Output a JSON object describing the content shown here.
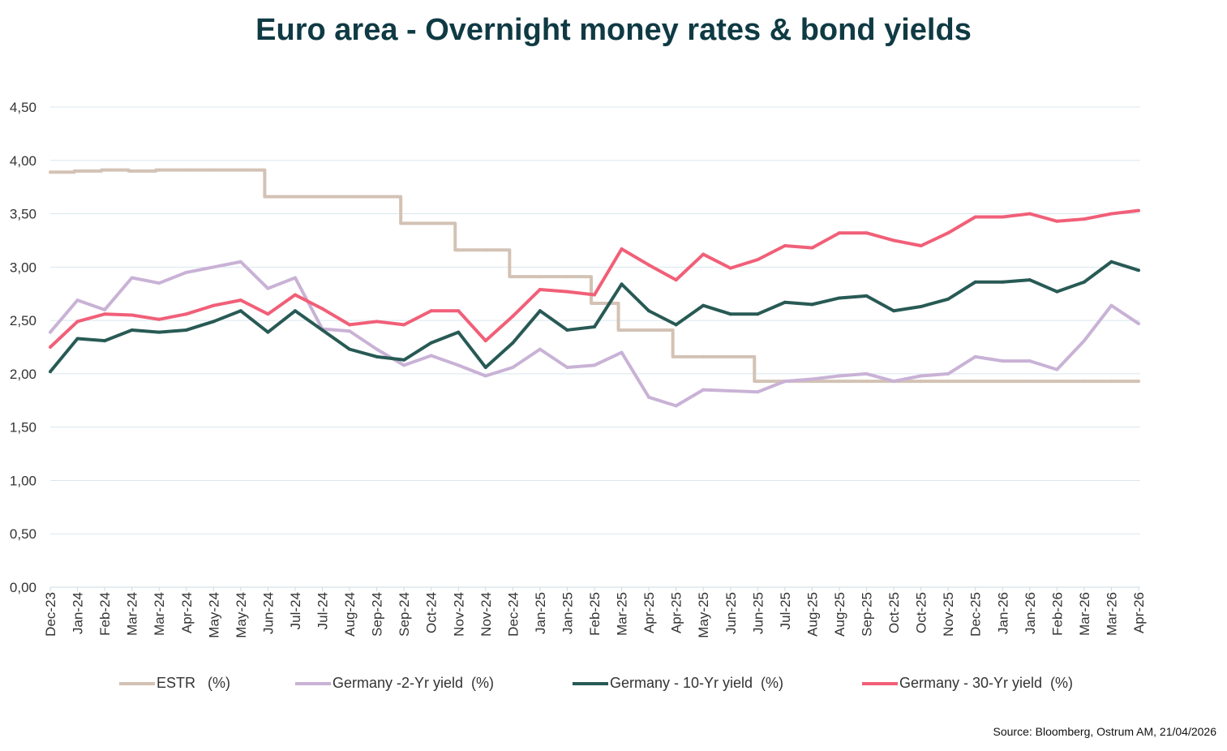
{
  "chart_data": {
    "type": "line",
    "title": "Euro area - Overnight money rates & bond yields",
    "xlabel": "",
    "ylabel": "",
    "ylim": [
      0,
      4.5
    ],
    "yticks": [
      "0,00",
      "0,50",
      "1,00",
      "1,50",
      "2,00",
      "2,50",
      "3,00",
      "3,50",
      "4,00",
      "4,50"
    ],
    "grid": true,
    "legend_position": "bottom",
    "categories": [
      "Dec-23",
      "Jan-24",
      "Feb-24",
      "Mar-24",
      "Mar-24",
      "Apr-24",
      "May-24",
      "May-24",
      "Jun-24",
      "Jul-24",
      "Jul-24",
      "Aug-24",
      "Sep-24",
      "Sep-24",
      "Oct-24",
      "Nov-24",
      "Nov-24",
      "Dec-24",
      "Jan-25",
      "Jan-25",
      "Feb-25",
      "Mar-25",
      "Apr-25",
      "Apr-25",
      "May-25",
      "Jun-25",
      "Jun-25",
      "Jul-25",
      "Aug-25",
      "Aug-25",
      "Sep-25",
      "Oct-25",
      "Oct-25",
      "Nov-25",
      "Dec-25",
      "Jan-26",
      "Jan-26",
      "Feb-26",
      "Mar-26",
      "Mar-26",
      "Apr-26"
    ],
    "series": [
      {
        "name": "ESTR   (%)",
        "color": "#d3c2b5",
        "values": [
          3.89,
          3.9,
          3.91,
          3.9,
          3.91,
          3.91,
          3.91,
          3.91,
          3.66,
          3.66,
          3.66,
          3.66,
          3.66,
          3.41,
          3.41,
          3.16,
          3.16,
          2.91,
          2.91,
          2.91,
          2.66,
          2.41,
          2.41,
          2.16,
          2.16,
          2.16,
          1.93,
          1.93,
          1.93,
          1.93,
          1.93,
          1.93,
          1.93,
          1.93,
          1.93,
          1.93,
          1.93,
          1.93,
          1.93,
          1.93,
          1.93
        ]
      },
      {
        "name": "Germany -2-Yr yield  (%)",
        "color": "#c9b2d6",
        "values": [
          2.39,
          2.69,
          2.6,
          2.9,
          2.85,
          2.95,
          3.0,
          3.05,
          2.8,
          2.9,
          2.42,
          2.4,
          2.23,
          2.08,
          2.17,
          2.08,
          1.98,
          2.06,
          2.23,
          2.06,
          2.08,
          2.2,
          1.78,
          1.7,
          1.85,
          1.84,
          1.83,
          1.93,
          1.95,
          1.98,
          2.0,
          1.93,
          1.98,
          2.0,
          2.16,
          2.12,
          2.12,
          2.04,
          2.31,
          2.64,
          2.47
        ]
      },
      {
        "name": "Germany - 10-Yr yield  (%)",
        "color": "#285a55",
        "values": [
          2.02,
          2.33,
          2.31,
          2.41,
          2.39,
          2.41,
          2.49,
          2.59,
          2.39,
          2.59,
          2.41,
          2.23,
          2.16,
          2.13,
          2.29,
          2.39,
          2.06,
          2.29,
          2.59,
          2.41,
          2.44,
          2.84,
          2.59,
          2.46,
          2.64,
          2.56,
          2.56,
          2.67,
          2.65,
          2.71,
          2.73,
          2.59,
          2.63,
          2.7,
          2.86,
          2.86,
          2.88,
          2.77,
          2.86,
          3.05,
          2.97
        ]
      },
      {
        "name": "Germany - 30-Yr yield  (%)",
        "color": "#f15f78",
        "values": [
          2.25,
          2.49,
          2.56,
          2.55,
          2.51,
          2.56,
          2.64,
          2.69,
          2.56,
          2.74,
          2.61,
          2.46,
          2.49,
          2.46,
          2.59,
          2.59,
          2.31,
          2.54,
          2.79,
          2.77,
          2.74,
          3.17,
          3.02,
          2.88,
          3.12,
          2.99,
          3.07,
          3.2,
          3.18,
          3.32,
          3.32,
          3.25,
          3.2,
          3.32,
          3.47,
          3.47,
          3.5,
          3.43,
          3.45,
          3.5,
          3.53
        ]
      }
    ]
  },
  "source": "Source: Bloomberg,  Ostrum AM, 21/04/2026"
}
